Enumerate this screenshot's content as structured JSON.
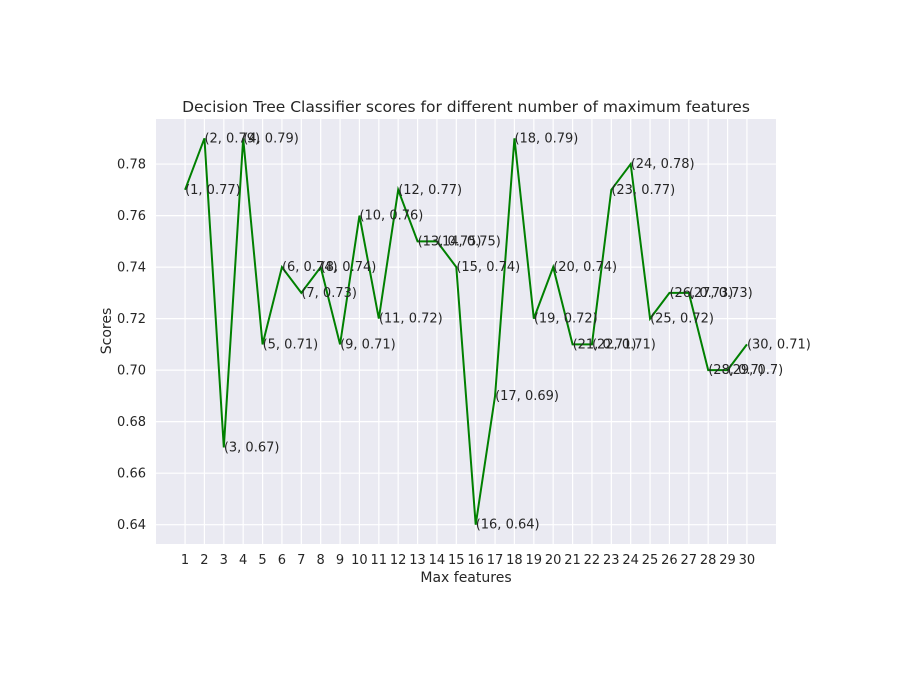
{
  "chart_data": {
    "type": "line",
    "title": "Decision Tree Classifier scores for different number of maximum features",
    "xlabel": "Max features",
    "ylabel": "Scores",
    "x": [
      1,
      2,
      3,
      4,
      5,
      6,
      7,
      8,
      9,
      10,
      11,
      12,
      13,
      14,
      15,
      16,
      17,
      18,
      19,
      20,
      21,
      22,
      23,
      24,
      25,
      26,
      27,
      28,
      29,
      30
    ],
    "series": [
      {
        "values": [
          0.77,
          0.79,
          0.67,
          0.79,
          0.71,
          0.74,
          0.73,
          0.74,
          0.71,
          0.76,
          0.72,
          0.77,
          0.75,
          0.75,
          0.74,
          0.64,
          0.69,
          0.79,
          0.72,
          0.74,
          0.71,
          0.71,
          0.77,
          0.78,
          0.72,
          0.73,
          0.73,
          0.7,
          0.7,
          0.71
        ],
        "color": "#008000"
      }
    ],
    "point_labels": [
      "(1, 0.77)",
      "(2, 0.79)",
      "(3, 0.67)",
      "(4, 0.79)",
      "(5, 0.71)",
      "(6, 0.74)",
      "(7, 0.73)",
      "(8, 0.74)",
      "(9, 0.71)",
      "(10, 0.76)",
      "(11, 0.72)",
      "(12, 0.77)",
      "(13, 0.75)",
      "(14, 0.75)",
      "(15, 0.74)",
      "(16, 0.64)",
      "(17, 0.69)",
      "(18, 0.79)",
      "(19, 0.72)",
      "(20, 0.74)",
      "(21, 0.71)",
      "(22, 0.71)",
      "(23, 0.77)",
      "(24, 0.78)",
      "(25, 0.72)",
      "(26, 0.73)",
      "(27, 0.73)",
      "(28, 0.7)",
      "(29, 0.7)",
      "(30, 0.71)"
    ],
    "xticks": [
      "1",
      "2",
      "3",
      "4",
      "5",
      "6",
      "7",
      "8",
      "9",
      "10",
      "11",
      "12",
      "13",
      "14",
      "15",
      "16",
      "17",
      "18",
      "19",
      "20",
      "21",
      "22",
      "23",
      "24",
      "25",
      "26",
      "27",
      "28",
      "29",
      "30"
    ],
    "yticks": [
      0.64,
      0.66,
      0.68,
      0.7,
      0.72,
      0.74,
      0.76,
      0.78
    ],
    "ytick_labels": [
      "0.64",
      "0.66",
      "0.68",
      "0.70",
      "0.72",
      "0.74",
      "0.76",
      "0.78"
    ],
    "xlim": [
      -0.5,
      31.5
    ],
    "ylim": [
      0.6325,
      0.7975
    ],
    "grid": true,
    "background": "#EAEAF2",
    "grid_color": "#FFFFFF"
  }
}
